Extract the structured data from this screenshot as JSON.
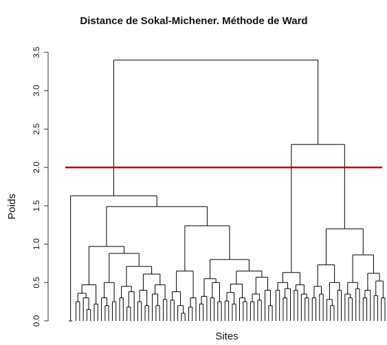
{
  "chart_data": {
    "type": "dendrogram",
    "title": "Distance de Sokal-Michener. Méthode de Ward",
    "ylabel": "Poids",
    "xlabel": "Sites",
    "ylim": [
      0,
      3.5
    ],
    "yticks": [
      {
        "value": 0,
        "label": "0.0"
      },
      {
        "value": 0.5,
        "label": "0.5"
      },
      {
        "value": 1,
        "label": "1.0"
      },
      {
        "value": 1.5,
        "label": "1.5"
      },
      {
        "value": 2,
        "label": "2.0"
      },
      {
        "value": 2.5,
        "label": "2.5"
      },
      {
        "value": 3,
        "label": "3.0"
      },
      {
        "value": 3.5,
        "label": "3.5"
      }
    ],
    "cut": 2,
    "cut_color": "#c00000",
    "color": "#000000",
    "tree": {
      "height": 3.4,
      "children": [
        {
          "height": 1.63,
          "children": [
            {
              "height": 0,
              "children": [
                0,
                0
              ]
            },
            {
              "height": 1.49,
              "children": [
                {
                  "height": 0.97,
                  "children": [
                    {
                      "height": 0.47,
                      "children": [
                        {
                          "height": 0.36,
                          "children": [
                            {
                              "height": 0.25,
                              "children": [
                                0,
                                0
                              ]
                            },
                            {
                              "height": 0.3,
                              "children": [
                                0,
                                {
                                  "height": 0.15,
                                  "children": [
                                    0,
                                    0
                                  ]
                                }
                              ]
                            }
                          ]
                        },
                        {
                          "height": 0.22,
                          "children": [
                            0,
                            0
                          ]
                        }
                      ]
                    },
                    {
                      "height": 0.88,
                      "children": [
                        {
                          "height": 0.5,
                          "children": [
                            {
                              "height": 0.3,
                              "children": [
                                0,
                                {
                                  "height": 0.2,
                                  "children": [
                                    0,
                                    0
                                  ]
                                }
                              ]
                            },
                            {
                              "height": 0.25,
                              "children": [
                                0,
                                0
                              ]
                            }
                          ]
                        },
                        {
                          "height": 0.71,
                          "children": [
                            {
                              "height": 0.45,
                              "children": [
                                {
                                  "height": 0.3,
                                  "children": [
                                    0,
                                    0
                                  ]
                                },
                                {
                                  "height": 0.38,
                                  "children": [
                                    {
                                      "height": 0.18,
                                      "children": [
                                        0,
                                        0
                                      ]
                                    },
                                    0
                                  ]
                                }
                              ]
                            },
                            {
                              "height": 0.61,
                              "children": [
                                {
                                  "height": 0.4,
                                  "children": [
                                    {
                                      "height": 0.25,
                                      "children": [
                                        0,
                                        0
                                      ]
                                    },
                                    {
                                      "height": 0.2,
                                      "children": [
                                        0,
                                        0
                                      ]
                                    }
                                  ]
                                },
                                {
                                  "height": 0.47,
                                  "children": [
                                    {
                                      "height": 0.35,
                                      "children": [
                                        0,
                                        {
                                          "height": 0.2,
                                          "children": [
                                            0,
                                            0
                                          ]
                                        }
                                      ]
                                    },
                                    {
                                      "height": 0.28,
                                      "children": [
                                        0,
                                        0
                                      ]
                                    }
                                  ]
                                }
                              ]
                            }
                          ]
                        }
                      ]
                    }
                  ]
                },
                {
                  "height": 1.24,
                  "children": [
                    {
                      "height": 0.65,
                      "children": [
                        {
                          "height": 0.38,
                          "children": [
                            {
                              "height": 0.27,
                              "children": [
                                0,
                                0
                              ]
                            },
                            {
                              "height": 0.2,
                              "children": [
                                0,
                                {
                                  "height": 0.1,
                                  "children": [
                                    0,
                                    0
                                  ]
                                }
                              ]
                            }
                          ]
                        },
                        {
                          "height": 0.3,
                          "children": [
                            {
                              "height": 0.18,
                              "children": [
                                0,
                                0
                              ]
                            },
                            0
                          ]
                        }
                      ]
                    },
                    {
                      "height": 0.8,
                      "children": [
                        {
                          "height": 0.55,
                          "children": [
                            {
                              "height": 0.32,
                              "children": [
                                {
                                  "height": 0.22,
                                  "children": [
                                    0,
                                    0
                                  ]
                                },
                                0
                              ]
                            },
                            {
                              "height": 0.5,
                              "children": [
                                {
                                  "height": 0.3,
                                  "children": [
                                    0,
                                    0
                                  ]
                                },
                                {
                                  "height": 0.25,
                                  "children": [
                                    0,
                                    0
                                  ]
                                }
                              ]
                            }
                          ]
                        },
                        {
                          "height": 0.65,
                          "children": [
                            {
                              "height": 0.48,
                              "children": [
                                {
                                  "height": 0.37,
                                  "children": [
                                    {
                                      "height": 0.26,
                                      "children": [
                                        0,
                                        0
                                      ]
                                    },
                                    {
                                      "height": 0.22,
                                      "children": [
                                        0,
                                        0
                                      ]
                                    }
                                  ]
                                },
                                {
                                  "height": 0.3,
                                  "children": [
                                    0,
                                    {
                                      "height": 0.25,
                                      "children": [
                                        0,
                                        0
                                      ]
                                    }
                                  ]
                                }
                              ]
                            },
                            {
                              "height": 0.57,
                              "children": [
                                {
                                  "height": 0.35,
                                  "children": [
                                    {
                                      "height": 0.25,
                                      "children": [
                                        0,
                                        0
                                      ]
                                    },
                                    {
                                      "height": 0.27,
                                      "children": [
                                        0,
                                        0
                                      ]
                                    }
                                  ]
                                },
                                {
                                  "height": 0.4,
                                  "children": [
                                    0,
                                    {
                                      "height": 0.2,
                                      "children": [
                                        0,
                                        0
                                      ]
                                    }
                                  ]
                                }
                              ]
                            }
                          ]
                        }
                      ]
                    }
                  ]
                }
              ]
            }
          ]
        },
        {
          "height": 2.3,
          "children": [
            {
              "height": 0.63,
              "children": [
                {
                  "height": 0.5,
                  "children": [
                    {
                      "height": 0.4,
                      "children": [
                        0,
                        0
                      ]
                    },
                    {
                      "height": 0.42,
                      "children": [
                        {
                          "height": 0.3,
                          "children": [
                            0,
                            0
                          ]
                        },
                        0
                      ]
                    }
                  ]
                },
                {
                  "height": 0.47,
                  "children": [
                    {
                      "height": 0.4,
                      "children": [
                        0,
                        0
                      ]
                    },
                    {
                      "height": 0.35,
                      "children": [
                        0,
                        {
                          "height": 0.3,
                          "children": [
                            0,
                            0
                          ]
                        }
                      ]
                    }
                  ]
                }
              ]
            },
            {
              "height": 1.2,
              "children": [
                {
                  "height": 0.73,
                  "children": [
                    {
                      "height": 0.45,
                      "children": [
                        {
                          "height": 0.3,
                          "children": [
                            0,
                            0
                          ]
                        },
                        {
                          "height": 0.35,
                          "children": [
                            0,
                            0
                          ]
                        }
                      ]
                    },
                    {
                      "height": 0.5,
                      "children": [
                        {
                          "height": 0.28,
                          "children": [
                            0,
                            {
                              "height": 0.2,
                              "children": [
                                0,
                                0
                              ]
                            }
                          ]
                        },
                        {
                          "height": 0.4,
                          "children": [
                            0,
                            0
                          ]
                        }
                      ]
                    }
                  ]
                },
                {
                  "height": 0.86,
                  "children": [
                    {
                      "height": 0.5,
                      "children": [
                        {
                          "height": 0.35,
                          "children": [
                            0,
                            {
                              "height": 0.3,
                              "children": [
                                0,
                                0
                              ]
                            }
                          ]
                        },
                        {
                          "height": 0.42,
                          "children": [
                            0,
                            0
                          ]
                        }
                      ]
                    },
                    {
                      "height": 0.62,
                      "children": [
                        {
                          "height": 0.4,
                          "children": [
                            {
                              "height": 0.3,
                              "children": [
                                0,
                                0
                              ]
                            },
                            0
                          ]
                        },
                        {
                          "height": 0.52,
                          "children": [
                            {
                              "height": 0.33,
                              "children": [
                                0,
                                0
                              ]
                            },
                            {
                              "height": 0.3,
                              "children": [
                                0,
                                0
                              ]
                            }
                          ]
                        }
                      ]
                    }
                  ]
                }
              ]
            }
          ]
        }
      ]
    }
  }
}
